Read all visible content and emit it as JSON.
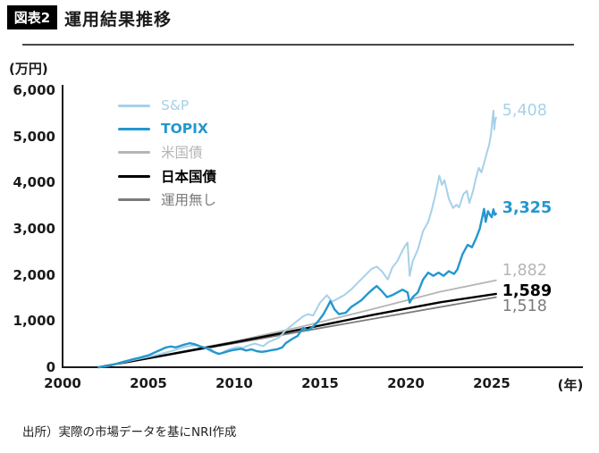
{
  "header": {
    "badge": "図表2",
    "title": "運用結果推移"
  },
  "chart": {
    "y_unit_label": "(万円)",
    "x_unit_label": "(年)",
    "y_ticks": [
      "6,000",
      "5,000",
      "4,000",
      "3,000",
      "2,000",
      "1,000",
      "0"
    ],
    "x_ticks": [
      "2000",
      "2005",
      "2010",
      "2015",
      "2020",
      "2025"
    ]
  },
  "source": "出所）実際の市場データを基にNRI作成",
  "chart_data": {
    "type": "line",
    "title": "運用結果推移",
    "xlabel": "(年)",
    "ylabel": "(万円)",
    "x_range": [
      2000,
      2030
    ],
    "ylim": [
      0,
      6000
    ],
    "x_tick_values": [
      2000,
      2005,
      2010,
      2015,
      2020,
      2025
    ],
    "y_tick_values": [
      0,
      1000,
      2000,
      3000,
      4000,
      5000,
      6000
    ],
    "grid": false,
    "legend_position": "inside-top-left",
    "series": [
      {
        "key": "sp",
        "name": "S&P",
        "color": "#a6d1e8",
        "width": 2,
        "z": 4,
        "bold": false,
        "end_value": 5408,
        "end_label": "5,408",
        "label_dy": -8,
        "points": [
          [
            2002.1,
            0
          ],
          [
            2002.5,
            18
          ],
          [
            2003,
            55
          ],
          [
            2003.5,
            100
          ],
          [
            2004,
            148
          ],
          [
            2004.5,
            185
          ],
          [
            2005,
            225
          ],
          [
            2005.5,
            268
          ],
          [
            2006,
            318
          ],
          [
            2006.5,
            368
          ],
          [
            2007,
            428
          ],
          [
            2007.5,
            468
          ],
          [
            2007.8,
            472
          ],
          [
            2008.2,
            432
          ],
          [
            2008.6,
            400
          ],
          [
            2008.9,
            320
          ],
          [
            2009.2,
            295
          ],
          [
            2009.5,
            358
          ],
          [
            2009.8,
            400
          ],
          [
            2010.2,
            440
          ],
          [
            2010.5,
            420
          ],
          [
            2010.8,
            468
          ],
          [
            2011.2,
            512
          ],
          [
            2011.45,
            482
          ],
          [
            2011.7,
            458
          ],
          [
            2012,
            545
          ],
          [
            2012.3,
            595
          ],
          [
            2012.6,
            640
          ],
          [
            2013,
            800
          ],
          [
            2013.5,
            950
          ],
          [
            2014,
            1100
          ],
          [
            2014.3,
            1150
          ],
          [
            2014.6,
            1120
          ],
          [
            2015,
            1400
          ],
          [
            2015.4,
            1560
          ],
          [
            2015.7,
            1420
          ],
          [
            2016,
            1480
          ],
          [
            2016.4,
            1560
          ],
          [
            2016.8,
            1680
          ],
          [
            2017.2,
            1830
          ],
          [
            2017.6,
            1980
          ],
          [
            2018,
            2130
          ],
          [
            2018.3,
            2180
          ],
          [
            2018.6,
            2080
          ],
          [
            2018.95,
            1900
          ],
          [
            2019.2,
            2150
          ],
          [
            2019.5,
            2300
          ],
          [
            2019.9,
            2600
          ],
          [
            2020.1,
            2700
          ],
          [
            2020.22,
            1980
          ],
          [
            2020.4,
            2300
          ],
          [
            2020.7,
            2550
          ],
          [
            2021,
            2950
          ],
          [
            2021.3,
            3150
          ],
          [
            2021.5,
            3400
          ],
          [
            2021.7,
            3700
          ],
          [
            2021.95,
            4150
          ],
          [
            2022.1,
            3950
          ],
          [
            2022.25,
            4050
          ],
          [
            2022.5,
            3650
          ],
          [
            2022.75,
            3450
          ],
          [
            2022.95,
            3520
          ],
          [
            2023.1,
            3460
          ],
          [
            2023.35,
            3750
          ],
          [
            2023.55,
            3820
          ],
          [
            2023.7,
            3560
          ],
          [
            2023.9,
            3800
          ],
          [
            2024.1,
            4120
          ],
          [
            2024.25,
            4320
          ],
          [
            2024.4,
            4220
          ],
          [
            2024.55,
            4420
          ],
          [
            2024.7,
            4620
          ],
          [
            2024.85,
            4820
          ],
          [
            2024.95,
            5020
          ],
          [
            2025.05,
            5400
          ],
          [
            2025.1,
            5560
          ],
          [
            2025.15,
            5150
          ],
          [
            2025.2,
            5330
          ],
          [
            2025.25,
            5408
          ]
        ]
      },
      {
        "key": "topix",
        "name": "TOPIX",
        "color": "#2397cf",
        "width": 2.4,
        "z": 5,
        "bold": true,
        "end_value": 3325,
        "end_label": "3,325",
        "label_dy": -6,
        "points": [
          [
            2002.1,
            0
          ],
          [
            2002.5,
            22
          ],
          [
            2003,
            60
          ],
          [
            2003.5,
            112
          ],
          [
            2004,
            162
          ],
          [
            2004.5,
            208
          ],
          [
            2005,
            258
          ],
          [
            2005.5,
            340
          ],
          [
            2006,
            425
          ],
          [
            2006.3,
            450
          ],
          [
            2006.6,
            430
          ],
          [
            2007,
            480
          ],
          [
            2007.4,
            520
          ],
          [
            2007.7,
            498
          ],
          [
            2008,
            455
          ],
          [
            2008.4,
            408
          ],
          [
            2008.8,
            330
          ],
          [
            2009.1,
            288
          ],
          [
            2009.4,
            318
          ],
          [
            2009.7,
            352
          ],
          [
            2010,
            378
          ],
          [
            2010.4,
            398
          ],
          [
            2010.7,
            362
          ],
          [
            2011,
            388
          ],
          [
            2011.3,
            348
          ],
          [
            2011.6,
            332
          ],
          [
            2011.9,
            348
          ],
          [
            2012.2,
            372
          ],
          [
            2012.5,
            390
          ],
          [
            2012.8,
            430
          ],
          [
            2013,
            520
          ],
          [
            2013.4,
            620
          ],
          [
            2013.7,
            680
          ],
          [
            2014,
            850
          ],
          [
            2014.3,
            800
          ],
          [
            2014.6,
            880
          ],
          [
            2014.9,
            1000
          ],
          [
            2015.2,
            1150
          ],
          [
            2015.45,
            1320
          ],
          [
            2015.6,
            1430
          ],
          [
            2015.85,
            1250
          ],
          [
            2016.1,
            1150
          ],
          [
            2016.5,
            1180
          ],
          [
            2016.8,
            1300
          ],
          [
            2017,
            1350
          ],
          [
            2017.4,
            1450
          ],
          [
            2017.8,
            1600
          ],
          [
            2018.1,
            1700
          ],
          [
            2018.3,
            1760
          ],
          [
            2018.6,
            1650
          ],
          [
            2018.9,
            1520
          ],
          [
            2019.2,
            1560
          ],
          [
            2019.5,
            1620
          ],
          [
            2019.8,
            1680
          ],
          [
            2020.1,
            1620
          ],
          [
            2020.22,
            1400
          ],
          [
            2020.4,
            1520
          ],
          [
            2020.7,
            1620
          ],
          [
            2021,
            1900
          ],
          [
            2021.3,
            2050
          ],
          [
            2021.6,
            1980
          ],
          [
            2021.9,
            2050
          ],
          [
            2022.2,
            1980
          ],
          [
            2022.5,
            2080
          ],
          [
            2022.8,
            2020
          ],
          [
            2023,
            2120
          ],
          [
            2023.3,
            2450
          ],
          [
            2023.6,
            2650
          ],
          [
            2023.85,
            2600
          ],
          [
            2024.1,
            2800
          ],
          [
            2024.3,
            3000
          ],
          [
            2024.45,
            3250
          ],
          [
            2024.55,
            3430
          ],
          [
            2024.65,
            3150
          ],
          [
            2024.78,
            3380
          ],
          [
            2024.9,
            3300
          ],
          [
            2025,
            3250
          ],
          [
            2025.1,
            3420
          ],
          [
            2025.18,
            3300
          ],
          [
            2025.25,
            3325
          ]
        ]
      },
      {
        "key": "us-bond",
        "name": "米国債",
        "color": "#b5b5b5",
        "width": 1.8,
        "z": 1,
        "bold": false,
        "end_value": 1882,
        "end_label": "1,882",
        "label_dy": -11,
        "points": [
          [
            2002.1,
            0
          ],
          [
            2006,
            270
          ],
          [
            2010,
            560
          ],
          [
            2014,
            885
          ],
          [
            2018,
            1255
          ],
          [
            2022,
            1635
          ],
          [
            2025.25,
            1882
          ]
        ]
      },
      {
        "key": "jp-bond",
        "name": "日本国債",
        "color": "#000000",
        "width": 2.4,
        "z": 3,
        "bold": true,
        "end_value": 1589,
        "end_label": "1,589",
        "label_dy": -3,
        "points": [
          [
            2002.1,
            0
          ],
          [
            2006,
            263
          ],
          [
            2010,
            538
          ],
          [
            2014,
            828
          ],
          [
            2018,
            1128
          ],
          [
            2022,
            1408
          ],
          [
            2025.25,
            1589
          ]
        ]
      },
      {
        "key": "no-invest",
        "name": "運用無し",
        "color": "#7b7b7b",
        "width": 1.8,
        "z": 2,
        "bold": false,
        "end_value": 1518,
        "end_label": "1,518",
        "label_dy": 10,
        "points": [
          [
            2002.1,
            0
          ],
          [
            2025.25,
            1518
          ]
        ]
      }
    ]
  }
}
